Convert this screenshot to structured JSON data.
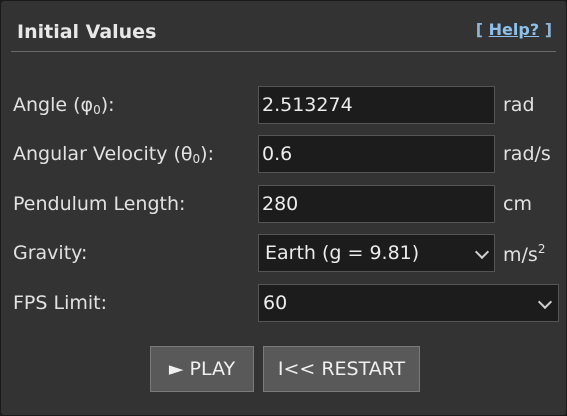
{
  "panel": {
    "title": "Initial Values",
    "help_open": "[",
    "help_label": "Help?",
    "help_close": "]"
  },
  "rows": {
    "angle": {
      "label": "Angle (φ",
      "sub": "0",
      "label_end": "):",
      "value": "2.513274",
      "unit": "rad"
    },
    "velocity": {
      "label": "Angular Velocity (θ",
      "sub": "0",
      "label_end": "):",
      "value": "0.6",
      "unit": "rad/s"
    },
    "length": {
      "label": "Pendulum Length:",
      "value": "280",
      "unit": "cm"
    },
    "gravity": {
      "label": "Gravity:",
      "value": "Earth (g = 9.81)",
      "unit": "m/s",
      "unit_sup": "2"
    },
    "fps": {
      "label": "FPS Limit:",
      "value": "60"
    }
  },
  "buttons": {
    "play_icon": "►",
    "play_label": "PLAY",
    "restart_label": "I<< RESTART"
  },
  "icons": {
    "play": "play-icon",
    "chevron": "chevron-down-icon"
  }
}
